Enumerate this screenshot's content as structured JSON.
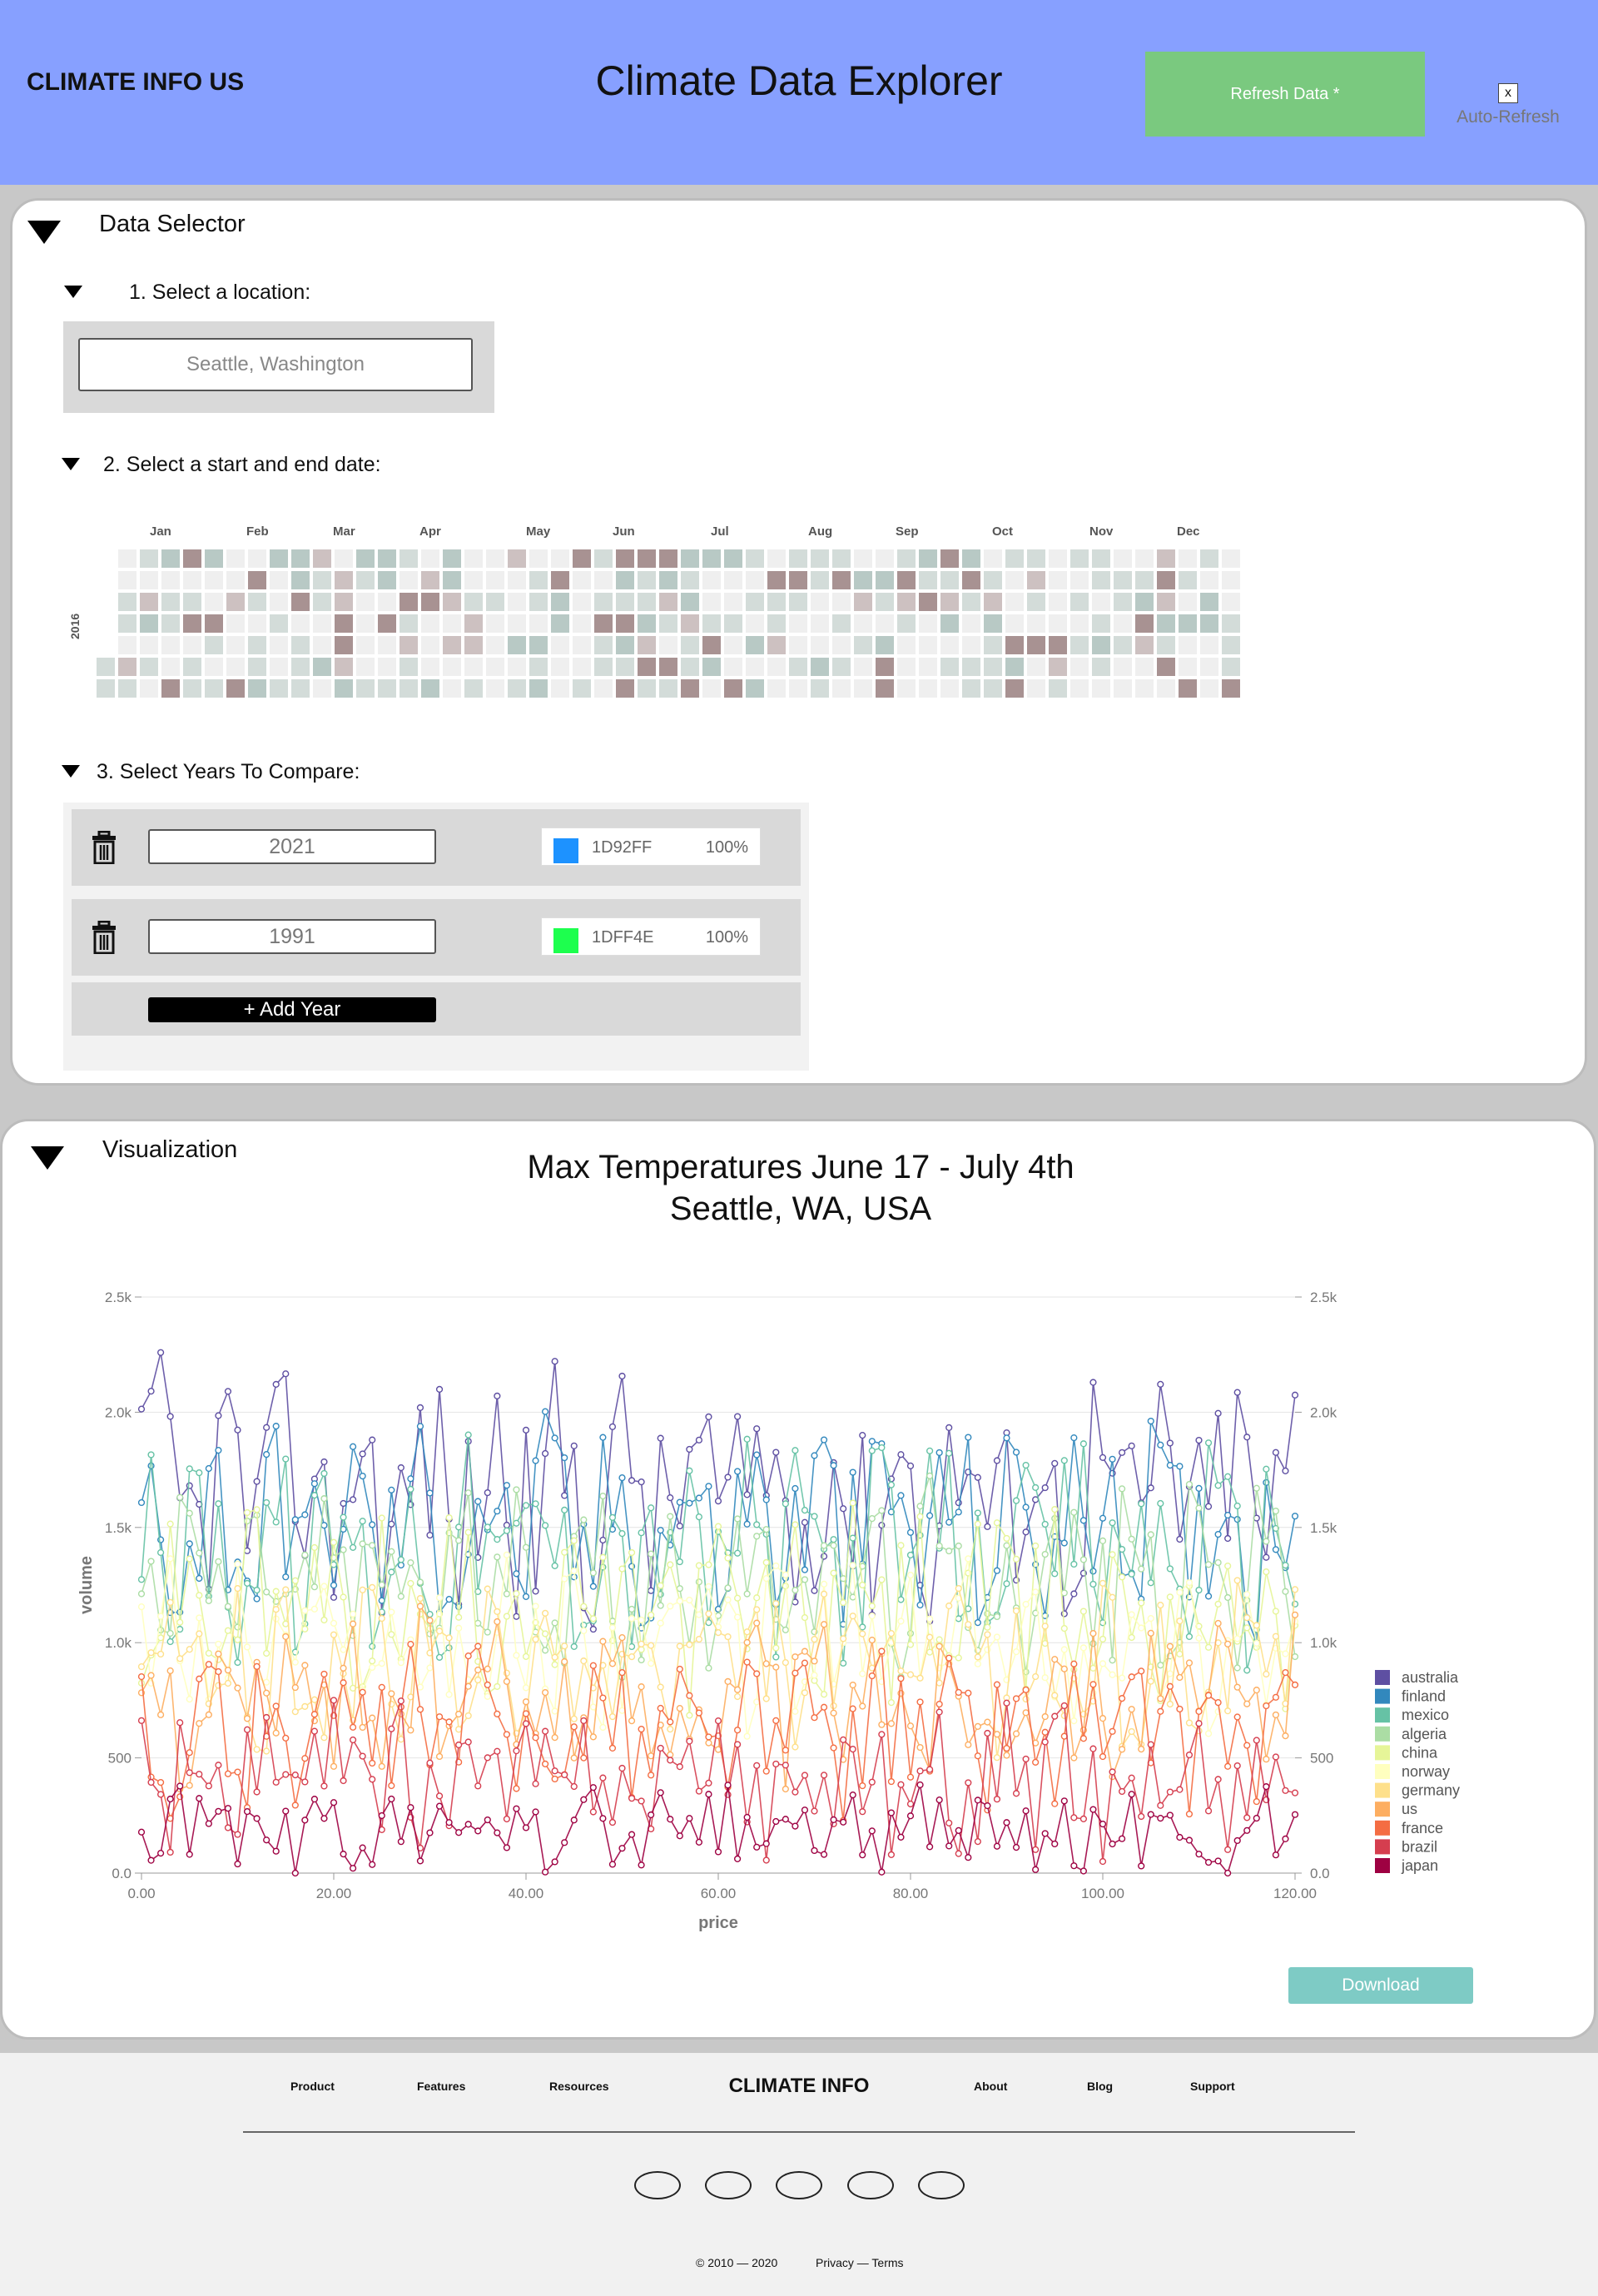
{
  "header": {
    "brand": "CLIMATE INFO US",
    "title": "Climate Data Explorer",
    "refresh_label": "Refresh Data *",
    "autorefresh_mark": "x",
    "autorefresh_label": "Auto-Refresh"
  },
  "selector": {
    "title": "Data Selector",
    "step1_label": "1. Select a location:",
    "location_value": "Seattle, Washington",
    "step2_label": "2. Select a start and end date:",
    "calendar": {
      "year": "2016",
      "months": [
        "Jan",
        "Feb",
        "Mar",
        "Apr",
        "May",
        "Jun",
        "Jul",
        "Aug",
        "Sep",
        "Oct",
        "Nov",
        "Dec"
      ],
      "palette": [
        "#efefef",
        "#d3dcd9",
        "#b8c9c5",
        "#cdc1c1",
        "#a89292"
      ]
    },
    "step3_label": "3. Select Years To Compare:",
    "years": [
      {
        "year": "2021",
        "color": "#1D92FF",
        "hex": "1D92FF",
        "opacity": "100%"
      },
      {
        "year": "1991",
        "color": "#1DFF4E",
        "hex": "1DFF4E",
        "opacity": "100%"
      }
    ],
    "add_label": "+ Add Year"
  },
  "visualization": {
    "title": "Visualization",
    "chart_title_line1": "Max Temperatures June 17 - July 4th",
    "chart_title_line2": "Seattle, WA, USA",
    "download_label": "Download"
  },
  "chart_data": {
    "type": "line",
    "xlabel": "price",
    "ylabel": "volume",
    "xlim": [
      0,
      120
    ],
    "ylim": [
      0,
      2500
    ],
    "x_ticks": [
      "0.00",
      "20.00",
      "40.00",
      "60.00",
      "80.00",
      "100.00",
      "120.00"
    ],
    "y_ticks": [
      "0.0",
      "500",
      "1.0k",
      "1.5k",
      "2.0k",
      "2.5k"
    ],
    "legend_position": "right",
    "series": [
      {
        "name": "australia",
        "color": "#5e4fa2",
        "approx_mean": 1650,
        "approx_range": [
          1000,
          2450
        ]
      },
      {
        "name": "finland",
        "color": "#3288bd",
        "approx_mean": 1520,
        "approx_range": [
          1000,
          2200
        ]
      },
      {
        "name": "mexico",
        "color": "#66c2a5",
        "approx_mean": 1400,
        "approx_range": [
          800,
          2000
        ]
      },
      {
        "name": "algeria",
        "color": "#abdda4",
        "approx_mean": 1280,
        "approx_range": [
          750,
          1800
        ]
      },
      {
        "name": "china",
        "color": "#e6f598",
        "approx_mean": 1150,
        "approx_range": [
          650,
          1700
        ]
      },
      {
        "name": "norway",
        "color": "#ffffbf",
        "approx_mean": 1000,
        "approx_range": [
          550,
          1500
        ]
      },
      {
        "name": "germany",
        "color": "#fee08b",
        "approx_mean": 880,
        "approx_range": [
          450,
          1350
        ]
      },
      {
        "name": "us",
        "color": "#fdae61",
        "approx_mean": 760,
        "approx_range": [
          300,
          1200
        ]
      },
      {
        "name": "france",
        "color": "#f46d43",
        "approx_mean": 620,
        "approx_range": [
          150,
          1050
        ]
      },
      {
        "name": "brazil",
        "color": "#d53e4f",
        "approx_mean": 400,
        "approx_range": [
          0,
          800
        ]
      },
      {
        "name": "japan",
        "color": "#9e0142",
        "approx_mean": 180,
        "approx_range": [
          0,
          500
        ]
      }
    ]
  },
  "footer": {
    "links_left": [
      "Product",
      "Features",
      "Resources"
    ],
    "brand": "CLIMATE INFO",
    "links_right": [
      "About",
      "Blog",
      "Support"
    ],
    "copyright": "© 2010 — 2020",
    "legal": "Privacy — Terms"
  }
}
